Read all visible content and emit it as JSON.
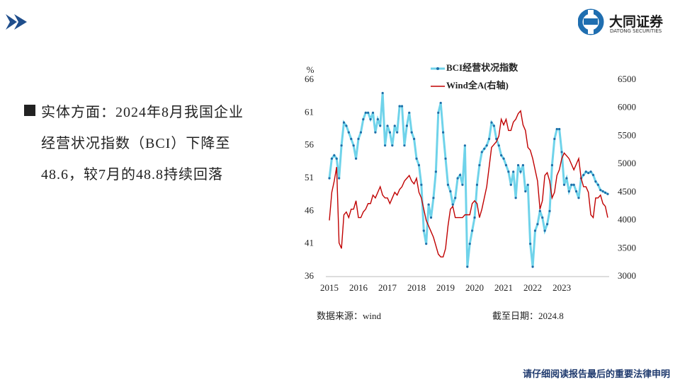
{
  "header": {
    "logo_text": "大同证券",
    "logo_sub": "DATONG SECURITIES"
  },
  "body": {
    "lines": [
      "实体方面：2024年8月我国企业",
      "经营状况指数（BCI）下降至",
      "48.6，较7月的48.8持续回落"
    ]
  },
  "chart_data": {
    "type": "line",
    "y_label": "%",
    "categories": [
      "2015",
      null,
      null,
      null,
      null,
      null,
      null,
      null,
      null,
      null,
      null,
      null,
      "2016",
      null,
      null,
      null,
      null,
      null,
      null,
      null,
      null,
      null,
      null,
      null,
      "2017",
      null,
      null,
      null,
      null,
      null,
      null,
      null,
      null,
      null,
      null,
      null,
      "2018",
      null,
      null,
      null,
      null,
      null,
      null,
      null,
      null,
      null,
      null,
      null,
      "2019",
      null,
      null,
      null,
      null,
      null,
      null,
      null,
      null,
      null,
      null,
      null,
      "2020",
      null,
      null,
      null,
      null,
      null,
      null,
      null,
      null,
      null,
      null,
      null,
      "2021",
      null,
      null,
      null,
      null,
      null,
      null,
      null,
      null,
      null,
      null,
      null,
      "2022",
      null,
      null,
      null,
      null,
      null,
      null,
      null,
      null,
      null,
      null,
      null,
      "2023",
      null,
      null,
      null,
      null,
      null,
      null,
      null,
      null,
      null,
      null,
      null,
      null,
      null,
      null,
      null,
      null,
      null,
      null,
      null
    ],
    "series": [
      {
        "name": "BCI经营状况指数",
        "color": "#6fd3ea",
        "marker_color": "#1f6ea8",
        "values": [
          51,
          54,
          54.5,
          54,
          51,
          56,
          59.5,
          59,
          58,
          57,
          56,
          54,
          57,
          58,
          60,
          61,
          61,
          60,
          61,
          58,
          60,
          59,
          64,
          56,
          59,
          58,
          56,
          59,
          58,
          62,
          62,
          56,
          59,
          61,
          58,
          57,
          54,
          53,
          50,
          43,
          41,
          47,
          45,
          48,
          52,
          61,
          62.5,
          58,
          54,
          50,
          49,
          47,
          48,
          51,
          51.5,
          50,
          56,
          37.5,
          41,
          43,
          45,
          50,
          53,
          55,
          55.5,
          56,
          57,
          59.5,
          59,
          57,
          56,
          54.5,
          54,
          53,
          52,
          50,
          52,
          48,
          53,
          52,
          53,
          49,
          50,
          41,
          37.5,
          43,
          44,
          46,
          45,
          43,
          44,
          46,
          53,
          57,
          58.5,
          58.5,
          55,
          50,
          51,
          49,
          50,
          50,
          49,
          48,
          51,
          51.5,
          52,
          51.8,
          52,
          51.5,
          50.5,
          50,
          49.2,
          49,
          48.8,
          48.6
        ]
      },
      {
        "name": "Wind全A(右轴)",
        "color": "#c00000",
        "axis": "y2",
        "values": [
          4000,
          4500,
          4700,
          4950,
          3600,
          3500,
          4100,
          4150,
          4050,
          4200,
          4200,
          4350,
          4050,
          4050,
          4150,
          4200,
          4300,
          4300,
          4450,
          4400,
          4500,
          4600,
          4450,
          4400,
          4400,
          4300,
          4400,
          4500,
          4450,
          4550,
          4600,
          4700,
          4750,
          4800,
          4700,
          4650,
          4750,
          4500,
          4400,
          4200,
          4000,
          3900,
          3800,
          3700,
          3550,
          3400,
          3350,
          3350,
          3500,
          3900,
          4200,
          4250,
          4050,
          4050,
          4050,
          4050,
          4100,
          4100,
          4100,
          4300,
          4350,
          4300,
          4050,
          4200,
          4400,
          4600,
          4950,
          5300,
          5350,
          5400,
          5500,
          5800,
          5700,
          5800,
          5600,
          5600,
          5750,
          5800,
          5900,
          5950,
          5700,
          5600,
          5300,
          5250,
          5100,
          4900,
          4700,
          4200,
          4350,
          4800,
          4850,
          4700,
          4400,
          4500,
          4800,
          4900,
          5100,
          5200,
          5150,
          5100,
          5000,
          4900,
          5000,
          5100,
          4750,
          4600,
          4600,
          4500,
          4100,
          4050,
          4400,
          4400,
          4450,
          4300,
          4250,
          4050
        ]
      }
    ],
    "ylim": [
      36,
      66
    ],
    "yticks": [
      36,
      41,
      46,
      51,
      56,
      61,
      66
    ],
    "y2lim": [
      3000,
      6500
    ],
    "y2ticks": [
      3000,
      3500,
      4000,
      4500,
      5000,
      5500,
      6000,
      6500
    ],
    "legend": "top"
  },
  "source": "数据来源：wind",
  "date_note": "截至日期：2024.8",
  "footer": "请仔细阅读报告最后的重要法律申明"
}
